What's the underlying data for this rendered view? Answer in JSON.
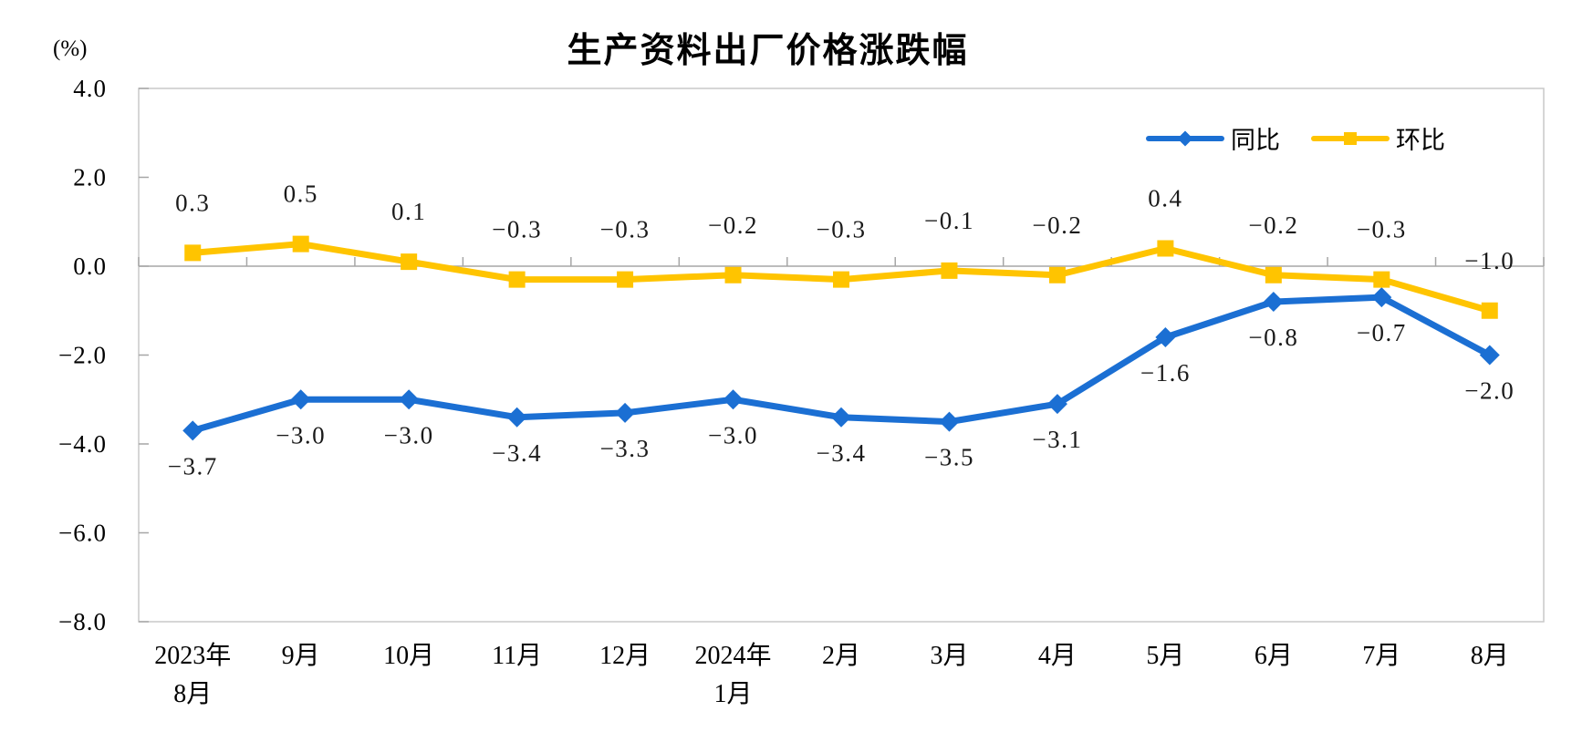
{
  "title": "生产资料出厂价格涨跌幅",
  "unit_label": "(%)",
  "colors": {
    "yoy_blue": "#1B6FD3",
    "mom_yellow": "#FFC400",
    "plot_border": "#C9C9C9",
    "axis_line": "#A6A6A6",
    "label_text": "#1a1a1a"
  },
  "chart_data": {
    "type": "line",
    "title": "生产资料出厂价格涨跌幅",
    "unit": "(%)",
    "categories": [
      [
        "2023年",
        "8月"
      ],
      [
        "9月"
      ],
      [
        "10月"
      ],
      [
        "11月"
      ],
      [
        "12月"
      ],
      [
        "2024年",
        "1月"
      ],
      [
        "2月"
      ],
      [
        "3月"
      ],
      [
        "4月"
      ],
      [
        "5月"
      ],
      [
        "6月"
      ],
      [
        "7月"
      ],
      [
        "8月"
      ]
    ],
    "series": [
      {
        "name": "同比",
        "color": "#1B6FD3",
        "marker": "diamond",
        "label_position": "below",
        "values": [
          -3.7,
          -3.0,
          -3.0,
          -3.4,
          -3.3,
          -3.0,
          -3.4,
          -3.5,
          -3.1,
          -1.6,
          -0.8,
          -0.7,
          -2.0
        ],
        "labels": [
          "−3.7",
          "−3.0",
          "−3.0",
          "−3.4",
          "−3.3",
          "−3.0",
          "−3.4",
          "−3.5",
          "−3.1",
          "−1.6",
          "−0.8",
          "−0.7",
          "−2.0"
        ]
      },
      {
        "name": "环比",
        "color": "#FFC400",
        "marker": "square",
        "label_position": "above",
        "values": [
          0.3,
          0.5,
          0.1,
          -0.3,
          -0.3,
          -0.2,
          -0.3,
          -0.1,
          -0.2,
          0.4,
          -0.2,
          -0.3,
          -1.0
        ],
        "labels": [
          "0.3",
          "0.5",
          "0.1",
          "−0.3",
          "−0.3",
          "−0.2",
          "−0.3",
          "−0.1",
          "−0.2",
          "0.4",
          "−0.2",
          "−0.3",
          "−1.0"
        ]
      }
    ],
    "y_axis": {
      "min": -8.0,
      "max": 4.0,
      "step": 2.0,
      "tick_labels": [
        "4.0",
        "2.0",
        "0.0",
        "−2.0",
        "−4.0",
        "−6.0",
        "−8.0"
      ],
      "tick_values": [
        4,
        2,
        0,
        -2,
        -4,
        -6,
        -8
      ]
    },
    "grid": false,
    "legend_position": "top-right-inside"
  }
}
